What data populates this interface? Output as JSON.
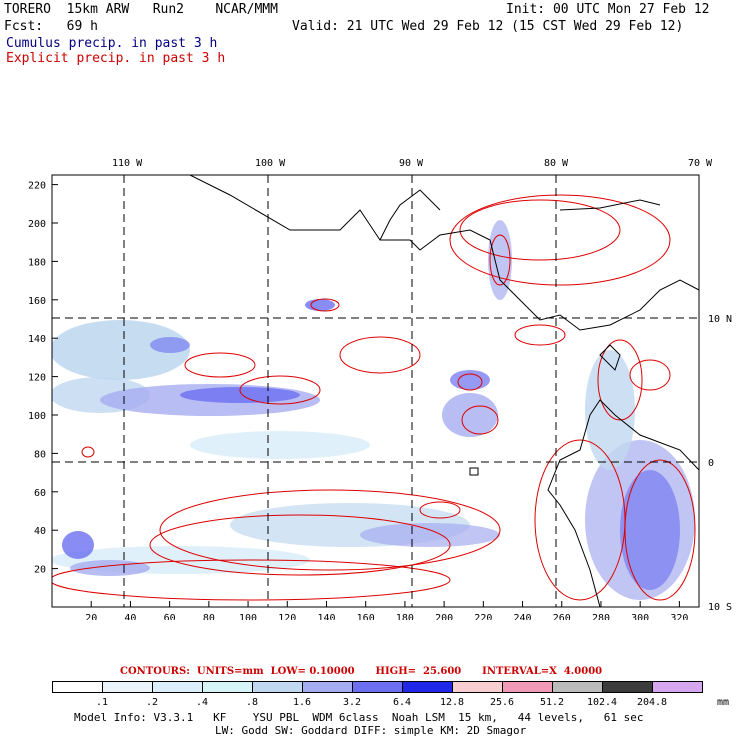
{
  "header": {
    "model": "TORERO  15km ARW   Run2    NCAR/MMM",
    "init": "Init: 00 UTC Mon 27 Feb 12",
    "fcst": "Fcst:   69 h",
    "valid": "Valid: 21 UTC Wed 29 Feb 12 (15 CST Wed 29 Feb 12)"
  },
  "legend": {
    "cumulus": "Cumulus precip. in past 3 h",
    "explicit": "Explicit precip. in past 3 h",
    "cumulus_color": "#000080",
    "explicit_color": "#cc0000"
  },
  "map": {
    "lon_labels": [
      "110 W",
      "100 W",
      "90 W",
      "80 W",
      "70 W"
    ],
    "lat_labels": [
      "10 N",
      "0",
      "10 S"
    ],
    "x_ticks": [
      "20",
      "40",
      "60",
      "80",
      "100",
      "120",
      "140",
      "160",
      "180",
      "200",
      "220",
      "240",
      "260",
      "280",
      "300",
      "320"
    ],
    "y_ticks": [
      "220",
      "200",
      "180",
      "160",
      "140",
      "120",
      "100",
      "80",
      "60",
      "40",
      "20"
    ]
  },
  "contours_line": "CONTOURS:  UNITS=mm  LOW= 0.10000      HIGH=  25.600      INTERVAL=X  4.0000",
  "colorbar": {
    "labels": [
      ".1",
      ".2",
      ".4",
      ".8",
      "1.6",
      "3.2",
      "6.4",
      "12.8",
      "25.6",
      "51.2",
      "102.4",
      "204.8"
    ],
    "unit": "mm",
    "colors": [
      "#ffffff",
      "#ecf4fb",
      "#dceefa",
      "#d5f5f8",
      "#c0d8f0",
      "#a6acf0",
      "#6b6ff0",
      "#1f28e8",
      "#f8ced0",
      "#f19ab8",
      "#bbbbbb",
      "#3c3c3c",
      "#d6a6f0"
    ]
  },
  "footer": {
    "line1": "Model Info: V3.3.1   KF    YSU PBL  WDM 6class  Noah LSM  15 km,   44 levels,   61 sec",
    "line2": "LW: Godd SW: Goddard DIFF: simple KM: 2D Smagor"
  }
}
